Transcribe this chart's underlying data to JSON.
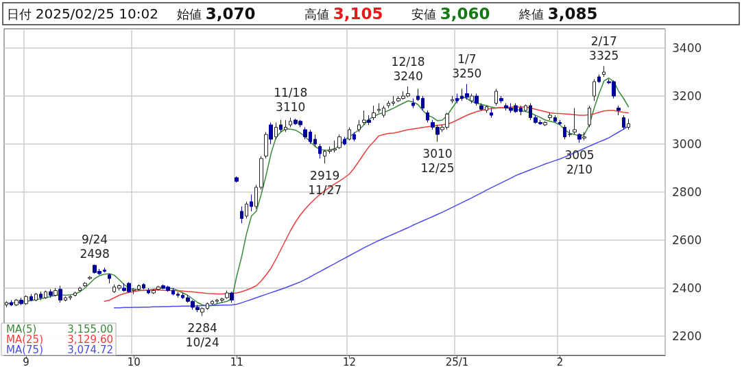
{
  "chart_data": {
    "type": "candlestick",
    "annotations": [
      "日付 2025/02/25 10:02",
      "始値 3,070",
      "高値 3,105",
      "安値 3,060",
      "終値 3,085",
      "3,155.00",
      "3,129.60",
      "3,074.72",
      {
        "text": "9/24\n2498",
        "y": 2498
      },
      {
        "text": "2284\n10/24",
        "y": 2284
      },
      {
        "text": "11/18\n3110",
        "y": 3110
      },
      {
        "text": "2919\n11/27",
        "y": 2919
      },
      {
        "text": "12/18\n3240",
        "y": 3240
      },
      {
        "text": "3010\n12/25",
        "y": 3010
      },
      {
        "text": "1/7\n3250",
        "y": 3250
      },
      {
        "text": "3005\n2/10",
        "y": 3005
      },
      {
        "text": "2/17\n3325",
        "y": 3325
      }
    ],
    "categories": [
      null,
      null,
      null,
      null,
      "9",
      null,
      null,
      null,
      null,
      null,
      null,
      null,
      null,
      null,
      null,
      null,
      null,
      null,
      null,
      null,
      null,
      null,
      null,
      null,
      null,
      null,
      "10",
      null,
      null,
      null,
      null,
      null,
      null,
      null,
      null,
      null,
      null,
      null,
      null,
      null,
      null,
      null,
      null,
      null,
      null,
      null,
      null,
      "11",
      null,
      null,
      null,
      null,
      null,
      null,
      null,
      null,
      null,
      null,
      null,
      null,
      null,
      null,
      null,
      null,
      null,
      null,
      null,
      null,
      null,
      null,
      "12",
      null,
      null,
      null,
      null,
      null,
      null,
      null,
      null,
      null,
      null,
      null,
      null,
      null,
      null,
      null,
      null,
      null,
      null,
      null,
      null,
      null,
      "25/1",
      null,
      null,
      null,
      null,
      null,
      null,
      null,
      null,
      null,
      null,
      null,
      null,
      null,
      null,
      null,
      null,
      null,
      null,
      null,
      null,
      "2",
      null,
      null,
      null,
      null,
      null,
      null,
      null,
      null,
      null,
      null,
      null,
      null,
      null,
      null
    ],
    "ylim": [
      2120,
      3480
    ],
    "yticks": [
      2200,
      2400,
      2600,
      2800,
      3000,
      3200,
      3400
    ],
    "grid": true,
    "legend": "bottom left",
    "marker": "none",
    "line_style": "solid",
    "series": [
      {
        "ohlc": [
          [
            2330,
            2345,
            2320,
            2340
          ],
          [
            2340,
            2350,
            2325,
            2330
          ],
          [
            2330,
            2355,
            2325,
            2350
          ],
          [
            2350,
            2360,
            2330,
            2335
          ],
          [
            2335,
            2370,
            2330,
            2365
          ],
          [
            2365,
            2375,
            2345,
            2350
          ],
          [
            2350,
            2380,
            2345,
            2375
          ],
          [
            2375,
            2385,
            2350,
            2360
          ],
          [
            2360,
            2390,
            2355,
            2385
          ],
          [
            2385,
            2395,
            2360,
            2370
          ],
          [
            2370,
            2400,
            2365,
            2390
          ],
          [
            2395,
            2410,
            2340,
            2350
          ],
          [
            2350,
            2365,
            2345,
            2360
          ],
          [
            2360,
            2370,
            2350,
            2365
          ],
          [
            2370,
            2385,
            2365,
            2380
          ],
          [
            2390,
            2405,
            2385,
            2400
          ],
          [
            2410,
            2425,
            2405,
            2420
          ],
          [
            2440,
            2450,
            2435,
            2445
          ],
          [
            2495,
            2498,
            2460,
            2465
          ],
          [
            2470,
            2480,
            2455,
            2460
          ],
          [
            2475,
            2485,
            2465,
            2470
          ],
          [
            2455,
            2460,
            2420,
            2440
          ],
          [
            2385,
            2415,
            2380,
            2405
          ],
          [
            2400,
            2415,
            2390,
            2410
          ],
          [
            2400,
            2420,
            2385,
            2390
          ],
          [
            2420,
            2425,
            2380,
            2385
          ],
          [
            2390,
            2400,
            2375,
            2395
          ],
          [
            2395,
            2415,
            2390,
            2410
          ],
          [
            2415,
            2420,
            2395,
            2400
          ],
          [
            2390,
            2400,
            2375,
            2380
          ],
          [
            2380,
            2395,
            2375,
            2390
          ],
          [
            2395,
            2410,
            2390,
            2405
          ],
          [
            2410,
            2415,
            2395,
            2400
          ],
          [
            2405,
            2410,
            2385,
            2390
          ],
          [
            2390,
            2400,
            2370,
            2375
          ],
          [
            2375,
            2385,
            2360,
            2370
          ],
          [
            2370,
            2380,
            2355,
            2360
          ],
          [
            2360,
            2370,
            2340,
            2345
          ],
          [
            2345,
            2350,
            2310,
            2320
          ],
          [
            2320,
            2330,
            2300,
            2310
          ],
          [
            2300,
            2320,
            2284,
            2315
          ],
          [
            2315,
            2340,
            2310,
            2335
          ],
          [
            2335,
            2350,
            2330,
            2345
          ],
          [
            2345,
            2355,
            2335,
            2350
          ],
          [
            2350,
            2360,
            2340,
            2355
          ],
          [
            2360,
            2390,
            2355,
            2380
          ],
          [
            2380,
            2385,
            2340,
            2350
          ],
          [
            2860,
            2865,
            2840,
            2845
          ],
          [
            2720,
            2740,
            2670,
            2690
          ],
          [
            2700,
            2760,
            2690,
            2750
          ],
          [
            2760,
            2790,
            2720,
            2740
          ],
          [
            2740,
            2830,
            2730,
            2820
          ],
          [
            2820,
            2950,
            2810,
            2940
          ],
          [
            2950,
            3050,
            2940,
            3040
          ],
          [
            3080,
            3090,
            3000,
            3020
          ],
          [
            3030,
            3090,
            3020,
            3070
          ],
          [
            3080,
            3100,
            3050,
            3060
          ],
          [
            3060,
            3100,
            3050,
            3070
          ],
          [
            3080,
            3110,
            3070,
            3095
          ],
          [
            3100,
            3105,
            3080,
            3085
          ],
          [
            3095,
            3100,
            3070,
            3080
          ],
          [
            3060,
            3070,
            3020,
            3030
          ],
          [
            3050,
            3060,
            3000,
            3010
          ],
          [
            3020,
            3040,
            2990,
            3000
          ],
          [
            2990,
            3000,
            2940,
            2960
          ],
          [
            2950,
            2975,
            2919,
            2970
          ],
          [
            2970,
            2990,
            2960,
            2975
          ],
          [
            2975,
            3015,
            2965,
            2980
          ],
          [
            2985,
            3040,
            2980,
            3030
          ],
          [
            3020,
            3030,
            2995,
            3000
          ],
          [
            3020,
            3070,
            3015,
            3060
          ],
          [
            3040,
            3050,
            3012,
            3020
          ],
          [
            3060,
            3100,
            3050,
            3080
          ],
          [
            3090,
            3140,
            3080,
            3100
          ],
          [
            3100,
            3120,
            3080,
            3090
          ],
          [
            3110,
            3160,
            3100,
            3130
          ],
          [
            3140,
            3170,
            3130,
            3145
          ],
          [
            3120,
            3160,
            3110,
            3150
          ],
          [
            3160,
            3180,
            3150,
            3170
          ],
          [
            3170,
            3200,
            3160,
            3175
          ],
          [
            3180,
            3200,
            3175,
            3190
          ],
          [
            3190,
            3220,
            3185,
            3200
          ],
          [
            3200,
            3240,
            3195,
            3210
          ],
          [
            3170,
            3190,
            3150,
            3160
          ],
          [
            3200,
            3230,
            3180,
            3185
          ],
          [
            3190,
            3200,
            3140,
            3150
          ],
          [
            3130,
            3140,
            3090,
            3100
          ],
          [
            3090,
            3100,
            3060,
            3070
          ],
          [
            3070,
            3080,
            3010,
            3040
          ],
          [
            3060,
            3080,
            3050,
            3070
          ],
          [
            3070,
            3130,
            3060,
            3125
          ],
          [
            3180,
            3200,
            3170,
            3185
          ],
          [
            3190,
            3210,
            3170,
            3180
          ],
          [
            3200,
            3230,
            3180,
            3190
          ],
          [
            3210,
            3250,
            3185,
            3195
          ],
          [
            3180,
            3210,
            3170,
            3200
          ],
          [
            3200,
            3210,
            3160,
            3170
          ],
          [
            3160,
            3170,
            3140,
            3145
          ],
          [
            3140,
            3160,
            3130,
            3155
          ],
          [
            3130,
            3150,
            3110,
            3120
          ],
          [
            3170,
            3230,
            3160,
            3220
          ],
          [
            3190,
            3200,
            3170,
            3180
          ],
          [
            3160,
            3170,
            3140,
            3150
          ],
          [
            3150,
            3170,
            3130,
            3140
          ],
          [
            3160,
            3170,
            3130,
            3135
          ],
          [
            3150,
            3160,
            3120,
            3135
          ],
          [
            3140,
            3165,
            3135,
            3160
          ],
          [
            3160,
            3170,
            3100,
            3110
          ],
          [
            3110,
            3120,
            3085,
            3090
          ],
          [
            3090,
            3100,
            3080,
            3085
          ],
          [
            3080,
            3095,
            3075,
            3090
          ],
          [
            3110,
            3130,
            3100,
            3120
          ],
          [
            3110,
            3120,
            3090,
            3095
          ],
          [
            3090,
            3100,
            3080,
            3085
          ],
          [
            3070,
            3080,
            3020,
            3030
          ],
          [
            3040,
            3060,
            3030,
            3040
          ],
          [
            3050,
            3150,
            3040,
            3060
          ],
          [
            3040,
            3045,
            3005,
            3020
          ],
          [
            3025,
            3050,
            3015,
            3030
          ],
          [
            3080,
            3160,
            3070,
            3150
          ],
          [
            3200,
            3270,
            3180,
            3260
          ],
          [
            3280,
            3290,
            3255,
            3260
          ],
          [
            3290,
            3325,
            3280,
            3300
          ],
          [
            3260,
            3270,
            3250,
            3255
          ],
          [
            3260,
            3265,
            3190,
            3200
          ],
          [
            3150,
            3160,
            3120,
            3140
          ],
          [
            3110,
            3120,
            3060,
            3070
          ],
          [
            3070,
            3105,
            3060,
            3085
          ]
        ]
      },
      {
        "type": "line",
        "name": "MA(5)",
        "color": "#3a8a3a",
        "values": [
          2335,
          2338,
          2340,
          2342,
          2345,
          2348,
          2352,
          2356,
          2360,
          2365,
          2370,
          2372,
          2370,
          2372,
          2375,
          2385,
          2400,
          2420,
          2440,
          2452,
          2458,
          2460,
          2454,
          2435,
          2415,
          2400,
          2395,
          2392,
          2390,
          2392,
          2395,
          2398,
          2400,
          2400,
          2398,
          2390,
          2380,
          2370,
          2355,
          2340,
          2330,
          2325,
          2328,
          2335,
          2340,
          2345,
          2355,
          2450,
          2530,
          2626,
          2700,
          2720,
          2790,
          2870,
          2960,
          3026,
          3050,
          3063,
          3062,
          3058,
          3046,
          3030,
          3010,
          2990,
          2977,
          2974,
          2975,
          2980,
          2995,
          3017,
          3030,
          3045,
          3060,
          3080,
          3103,
          3115,
          3125,
          3131,
          3140,
          3149,
          3160,
          3170,
          3180,
          3175,
          3165,
          3140,
          3120,
          3111,
          3097,
          3100,
          3120,
          3150,
          3180,
          3197,
          3190,
          3177,
          3170,
          3165,
          3160,
          3154,
          3150,
          3152,
          3150,
          3149,
          3145,
          3140,
          3135,
          3130,
          3120,
          3111,
          3100,
          3095,
          3090,
          3080,
          3060,
          3045,
          3040,
          3034,
          3040,
          3080,
          3150,
          3210,
          3263,
          3275,
          3260,
          3220,
          3190,
          3155
        ]
      },
      {
        "type": "line",
        "name": "MA(25)",
        "color": "#f03c3c",
        "values": [
          null,
          null,
          null,
          null,
          null,
          null,
          null,
          null,
          null,
          null,
          null,
          null,
          null,
          null,
          null,
          null,
          null,
          null,
          null,
          null,
          2345,
          2350,
          2360,
          2370,
          2377,
          2382,
          2386,
          2389,
          2391,
          2391,
          2392,
          2392,
          2391,
          2390,
          2390,
          2389,
          2388,
          2386,
          2384,
          2382,
          2380,
          2378,
          2377,
          2376,
          2376,
          2377,
          2378,
          2380,
          2385,
          2392,
          2400,
          2410,
          2430,
          2455,
          2483,
          2520,
          2560,
          2600,
          2640,
          2675,
          2705,
          2730,
          2752,
          2772,
          2790,
          2806,
          2820,
          2834,
          2846,
          2860,
          2875,
          2900,
          2930,
          2960,
          2989,
          3010,
          3034,
          3040,
          3044,
          3046,
          3050,
          3055,
          3060,
          3063,
          3066,
          3069,
          3072,
          3075,
          3078,
          3081,
          3083,
          3090,
          3100,
          3110,
          3120,
          3128,
          3135,
          3140,
          3145,
          3148,
          3150,
          3152,
          3153,
          3154,
          3154,
          3154,
          3154,
          3150,
          3145,
          3140,
          3135,
          3130,
          3128,
          3127,
          3126,
          3124,
          3122,
          3120,
          3120,
          3122,
          3126,
          3132,
          3138,
          3140,
          3140,
          3136,
          3132,
          3130
        ]
      },
      {
        "type": "line",
        "name": "MA(75)",
        "color": "#4a4af0",
        "values": [
          null,
          null,
          null,
          null,
          null,
          null,
          null,
          null,
          null,
          null,
          null,
          null,
          null,
          null,
          null,
          null,
          null,
          null,
          null,
          null,
          null,
          null,
          2318,
          2318,
          2319,
          2319,
          2320,
          2320,
          2321,
          2321,
          2322,
          2322,
          2323,
          2323,
          2324,
          2324,
          2325,
          2325,
          2326,
          2326,
          2327,
          2327,
          2328,
          2328,
          2329,
          2329,
          2330,
          2333,
          2339,
          2346,
          2353,
          2360,
          2367,
          2374,
          2381,
          2388,
          2395,
          2402,
          2410,
          2418,
          2426,
          2436,
          2447,
          2458,
          2469,
          2480,
          2491,
          2502,
          2513,
          2524,
          2535,
          2546,
          2557,
          2568,
          2578,
          2588,
          2598,
          2607,
          2616,
          2625,
          2634,
          2643,
          2652,
          2662,
          2671,
          2680,
          2689,
          2698,
          2707,
          2716,
          2726,
          2736,
          2746,
          2756,
          2766,
          2776,
          2787,
          2797,
          2808,
          2818,
          2828,
          2838,
          2848,
          2858,
          2869,
          2877,
          2885,
          2893,
          2901,
          2909,
          2917,
          2924,
          2931,
          2938,
          2946,
          2955,
          2964,
          2973,
          2982,
          2991,
          3000,
          3009,
          3017,
          3026,
          3038,
          3050,
          3062,
          3075
        ]
      }
    ]
  }
}
